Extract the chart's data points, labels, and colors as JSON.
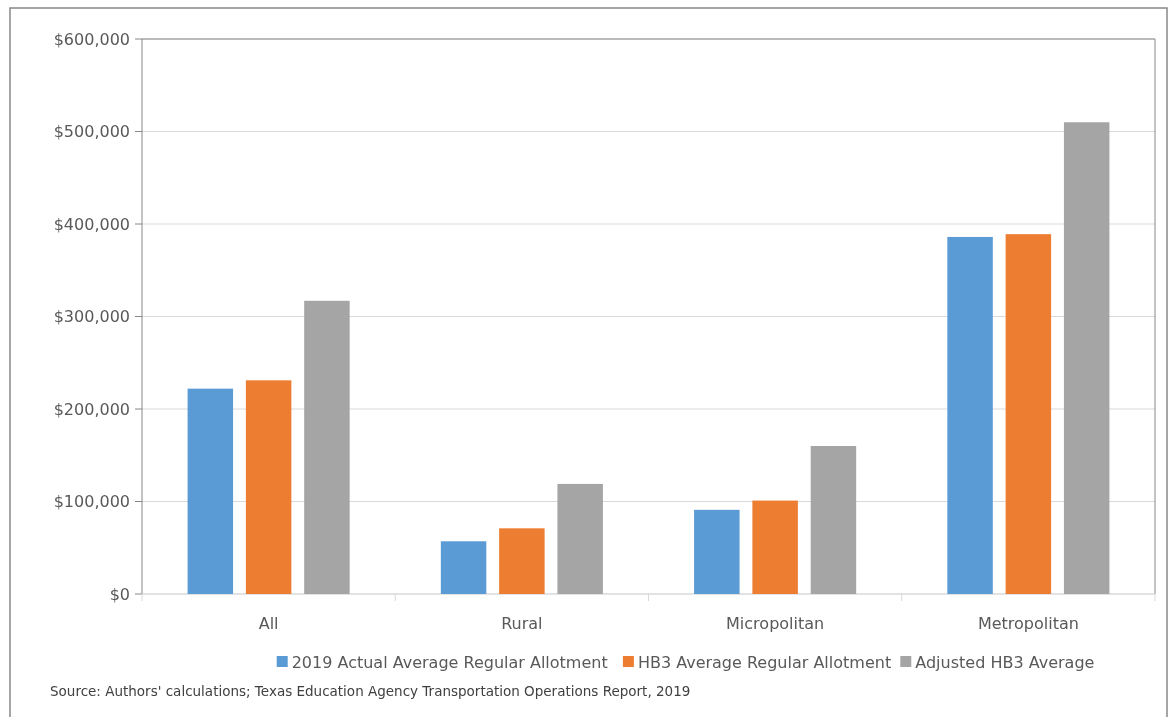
{
  "chart_data": {
    "type": "bar",
    "categories": [
      "All",
      "Rural",
      "Micropolitan",
      "Metropolitan"
    ],
    "series": [
      {
        "name": "2019 Actual Average Regular Allotment",
        "color": "#5b9bd5",
        "values": [
          222000,
          57000,
          91000,
          386000
        ]
      },
      {
        "name": "HB3 Average Regular Allotment",
        "color": "#ed7d31",
        "values": [
          231000,
          71000,
          101000,
          389000
        ]
      },
      {
        "name": "Adjusted HB3 Average",
        "color": "#a5a5a5",
        "values": [
          317000,
          119000,
          160000,
          510000
        ]
      }
    ],
    "ylim": [
      0,
      600000
    ],
    "yticks": [
      {
        "value": 0,
        "label": "$0"
      },
      {
        "value": 100000,
        "label": "$100,000"
      },
      {
        "value": 200000,
        "label": "$200,000"
      },
      {
        "value": 300000,
        "label": "$300,000"
      },
      {
        "value": 400000,
        "label": "$400,000"
      },
      {
        "value": 500000,
        "label": "$500,000"
      },
      {
        "value": 600000,
        "label": "$600,000"
      }
    ],
    "grid": "y",
    "legend": "bottom",
    "annotations": [
      "Source: Authors' calculations; Texas Education Agency Transportation Operations Report, 2019"
    ]
  }
}
